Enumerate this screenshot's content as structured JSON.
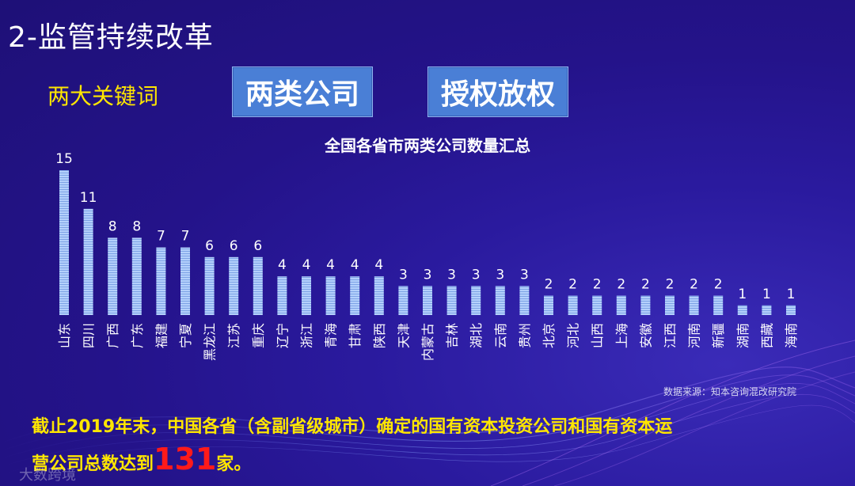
{
  "slide": {
    "title": "2-监管持续改革",
    "keywords_label": "两大关键词",
    "keyword_1": "两类公司",
    "keyword_2": "授权放权"
  },
  "chart_data": {
    "type": "bar",
    "title": "全国各省市两类公司数量汇总",
    "categories": [
      "山东",
      "四川",
      "广西",
      "广东",
      "福建",
      "宁夏",
      "黑龙江",
      "江苏",
      "重庆",
      "辽宁",
      "浙江",
      "青海",
      "甘肃",
      "陕西",
      "天津",
      "内蒙古",
      "吉林",
      "湖北",
      "云南",
      "贵州",
      "北京",
      "河北",
      "山西",
      "上海",
      "安徽",
      "江西",
      "河南",
      "新疆",
      "湖南",
      "西藏",
      "海南"
    ],
    "values": [
      15,
      11,
      8,
      8,
      7,
      7,
      6,
      6,
      6,
      4,
      4,
      4,
      4,
      4,
      3,
      3,
      3,
      3,
      3,
      3,
      2,
      2,
      2,
      2,
      2,
      2,
      2,
      2,
      1,
      1,
      1
    ],
    "ylim": [
      0,
      16
    ],
    "bar_color": "#a8c8f8",
    "grid": false
  },
  "source": "数据来源：知本咨询混改研究院",
  "summary": {
    "line1": "截止2019年末，中国各省（含副省级城市）确定的国有资本投资公司和国有资本运",
    "line2_prefix": "营公司总数达到",
    "highlight": "131",
    "line2_suffix": "家。"
  },
  "watermark": "大数跨境",
  "colors": {
    "background": "#24138a",
    "highlight": "#ff1a1a",
    "yellow_text": "#ffe600",
    "keyword_box": "#4a7fd6"
  }
}
